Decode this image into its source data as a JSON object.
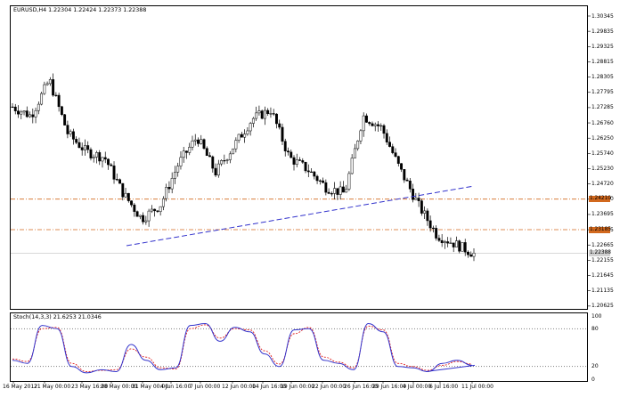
{
  "chart": {
    "symbol_title": "EURUSD,H4  1.22304 1.22424 1.22373 1.22388",
    "osc_title": "Stoch(14,3,3) 21.6253 21.0346",
    "price_scale": [
      "1.30345",
      "1.29835",
      "1.29325",
      "1.28815",
      "1.28305",
      "1.27795",
      "1.27285",
      "1.26760",
      "1.26250",
      "1.25740",
      "1.25230",
      "1.24720",
      "1.24210",
      "1.23695",
      "1.23185",
      "1.22665",
      "1.22155",
      "1.21645",
      "1.21135",
      "1.20625"
    ],
    "level_upper": "1.24210",
    "level_middle": "1.23185",
    "current_price": "1.22388",
    "osc_scale": [
      "100",
      "80",
      "20",
      "0"
    ],
    "dates": [
      "16 May 2012",
      "21 May 00:00",
      "23 May 16:00",
      "28 May 00:00",
      "31 May 00:00",
      "4 Jun 16:00",
      "7 Jun 00:00",
      "12 Jun 00:00",
      "14 Jun 16:00",
      "19 Jun 00:00",
      "22 Jun 00:00",
      "26 Jun 16:00",
      "29 Jun 16:00",
      "4 Jul 00:00",
      "6 Jul 16:00",
      "11 Jul 00:00"
    ],
    "colors": {
      "candle": "#000000",
      "level": "#d2691e",
      "trendline": "#3333cc",
      "stoch_main": "#3333cc",
      "stoch_signal": "#e0201e",
      "current_box": "#d0d0d0",
      "level_box": "#d2691e"
    }
  },
  "chart_data": {
    "type": "candlestick",
    "x": [
      "16 May 2012",
      "21 May 00:00",
      "23 May 16:00",
      "28 May 00:00",
      "31 May 00:00",
      "4 Jun 16:00",
      "7 Jun 00:00",
      "12 Jun 00:00",
      "14 Jun 16:00",
      "19 Jun 00:00",
      "22 Jun 00:00",
      "26 Jun 16:00",
      "29 Jun 16:00",
      "4 Jul 00:00",
      "6 Jul 16:00",
      "11 Jul 00:00"
    ],
    "close_path": [
      1.273,
      1.27,
      1.282,
      1.264,
      1.258,
      1.256,
      1.244,
      1.2355,
      1.24,
      1.254,
      1.263,
      1.251,
      1.26,
      1.269,
      1.272,
      1.256,
      1.252,
      1.246,
      1.244,
      1.27,
      1.266,
      1.252,
      1.24,
      1.23,
      1.227,
      1.2238
    ],
    "ylim": [
      1.204,
      1.305
    ],
    "stoch_main": [
      30,
      25,
      85,
      80,
      20,
      10,
      15,
      12,
      55,
      30,
      15,
      18,
      85,
      88,
      60,
      82,
      75,
      40,
      20,
      78,
      80,
      30,
      25,
      15,
      88,
      75,
      20,
      18,
      12,
      25,
      30,
      22
    ],
    "stoch_signal": [
      32,
      28,
      80,
      82,
      25,
      12,
      14,
      15,
      48,
      35,
      18,
      16,
      80,
      86,
      65,
      80,
      78,
      45,
      24,
      72,
      82,
      35,
      27,
      18,
      84,
      78,
      25,
      20,
      14,
      22,
      28,
      24
    ],
    "stoch_ylim": [
      0,
      100
    ]
  }
}
